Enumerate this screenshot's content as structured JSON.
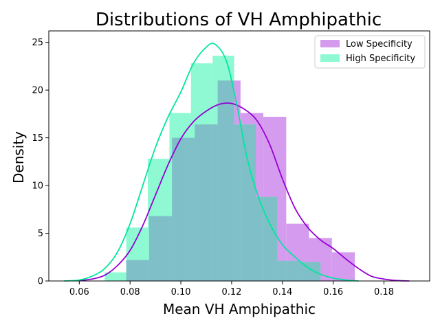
{
  "chart_data": {
    "type": "histogram-kde",
    "title": "Distributions of VH Amphipathic",
    "xlabel": "Mean VH Amphipathic",
    "ylabel": "Density",
    "xlim": [
      0.048,
      0.198
    ],
    "ylim": [
      0,
      26.2
    ],
    "xticks": [
      0.06,
      0.08,
      0.1,
      0.12,
      0.14,
      0.16,
      0.18
    ],
    "xtick_labels": [
      "0.06",
      "0.08",
      "0.10",
      "0.12",
      "0.14",
      "0.16",
      "0.18"
    ],
    "yticks": [
      0,
      5,
      10,
      15,
      20,
      25
    ],
    "ytick_labels": [
      "0",
      "5",
      "10",
      "15",
      "20",
      "25"
    ],
    "grid": false,
    "legend_position": "top-right",
    "overlap_color": "#7fbfc8",
    "series": [
      {
        "name": "Low Specificity",
        "hist_color": "#d59bee",
        "line_color": "#9400d3",
        "bins": [
          {
            "x0": 0.0785,
            "x1": 0.0875,
            "y": 2.2
          },
          {
            "x0": 0.0875,
            "x1": 0.0965,
            "y": 6.8
          },
          {
            "x0": 0.0965,
            "x1": 0.1055,
            "y": 15.0
          },
          {
            "x0": 0.1055,
            "x1": 0.1145,
            "y": 16.4
          },
          {
            "x0": 0.1145,
            "x1": 0.1235,
            "y": 21.0
          },
          {
            "x0": 0.1235,
            "x1": 0.1325,
            "y": 17.6
          },
          {
            "x0": 0.1325,
            "x1": 0.1415,
            "y": 17.2
          },
          {
            "x0": 0.1415,
            "x1": 0.1505,
            "y": 6.0
          },
          {
            "x0": 0.1505,
            "x1": 0.1595,
            "y": 4.5
          },
          {
            "x0": 0.1595,
            "x1": 0.1685,
            "y": 3.0
          }
        ],
        "kde": {
          "x": [
            0.06,
            0.065,
            0.07,
            0.075,
            0.08,
            0.085,
            0.09,
            0.095,
            0.1,
            0.105,
            0.11,
            0.115,
            0.12,
            0.125,
            0.13,
            0.135,
            0.14,
            0.145,
            0.15,
            0.155,
            0.16,
            0.165,
            0.17,
            0.175,
            0.18,
            0.185,
            0.19
          ],
          "y": [
            0.05,
            0.2,
            0.6,
            1.6,
            3.2,
            5.8,
            9.0,
            12.2,
            14.9,
            16.7,
            17.8,
            18.5,
            18.6,
            18.0,
            16.8,
            14.3,
            10.7,
            7.6,
            5.6,
            4.3,
            3.4,
            2.3,
            1.3,
            0.5,
            0.2,
            0.05,
            0.0
          ]
        }
      },
      {
        "name": "High Specificity",
        "hist_color": "#8ef9d2",
        "line_color": "#00e6a0",
        "bins": [
          {
            "x0": 0.07,
            "x1": 0.0785,
            "y": 0.9
          },
          {
            "x0": 0.0785,
            "x1": 0.087,
            "y": 5.6
          },
          {
            "x0": 0.087,
            "x1": 0.0955,
            "y": 12.8
          },
          {
            "x0": 0.0955,
            "x1": 0.104,
            "y": 17.6
          },
          {
            "x0": 0.104,
            "x1": 0.1125,
            "y": 22.8
          },
          {
            "x0": 0.1125,
            "x1": 0.121,
            "y": 23.6
          },
          {
            "x0": 0.121,
            "x1": 0.1295,
            "y": 16.4
          },
          {
            "x0": 0.1295,
            "x1": 0.138,
            "y": 8.8
          },
          {
            "x0": 0.138,
            "x1": 0.1465,
            "y": 2.1
          },
          {
            "x0": 0.1465,
            "x1": 0.155,
            "y": 2.0
          }
        ],
        "kde": {
          "x": [
            0.054,
            0.06,
            0.065,
            0.07,
            0.075,
            0.08,
            0.085,
            0.09,
            0.095,
            0.1,
            0.105,
            0.11,
            0.1135,
            0.118,
            0.122,
            0.126,
            0.13,
            0.135,
            0.14,
            0.145,
            0.15,
            0.155,
            0.16,
            0.165,
            0.17
          ],
          "y": [
            0.0,
            0.1,
            0.5,
            1.3,
            3.0,
            6.0,
            10.0,
            14.0,
            17.2,
            19.8,
            22.8,
            24.5,
            24.8,
            23.0,
            18.5,
            13.0,
            9.2,
            6.0,
            3.8,
            2.5,
            1.4,
            0.7,
            0.3,
            0.1,
            0.0
          ]
        }
      }
    ]
  }
}
